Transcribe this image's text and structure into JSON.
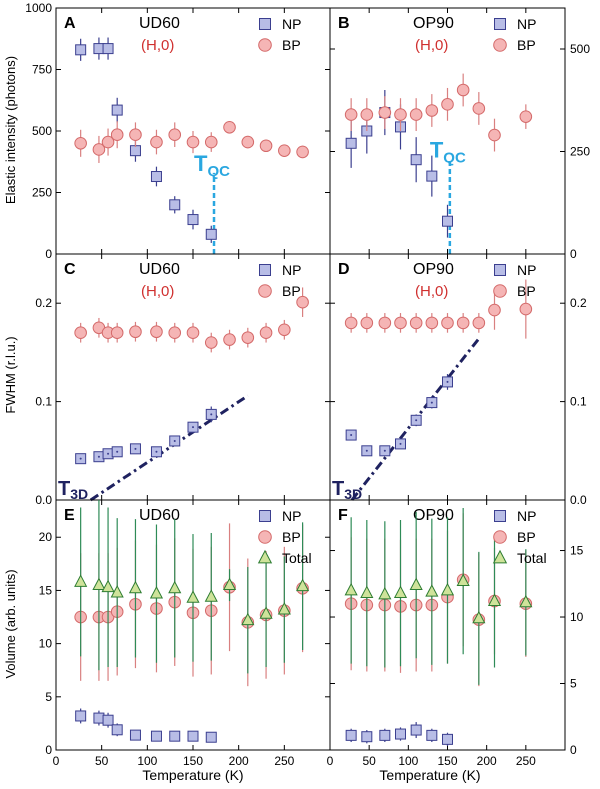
{
  "figure": {
    "xlabel": "Temperature (K)",
    "ylabel_row": [
      "Elastic intensity (photons)",
      "FWHM (r.l.u.)",
      "Volume (arb. units)"
    ]
  },
  "colors": {
    "np_fill": "#b8bde6",
    "np_stroke": "#3b3f8f",
    "bp_fill": "#f5b5b5",
    "bp_stroke": "#d46a6a",
    "total_fill": "#cfe39a",
    "total_stroke": "#2e7d32",
    "total_err": "#2e8b57",
    "np_err": "#3b3f8f",
    "bp_err": "#d98080",
    "tqc": "#2aa7e0",
    "t3d": "#1f2260",
    "title_red": "#d0302f"
  },
  "chart_data": [
    {
      "panel": "A",
      "type": "scatter",
      "title": "UD60",
      "subtitle": "(H,0)",
      "ylim_left": [
        0,
        1000
      ],
      "yticks_left": [
        0,
        250,
        500,
        750,
        1000
      ],
      "xlim": [
        0,
        300
      ],
      "xticks": [
        0,
        50,
        100,
        150,
        200,
        250
      ],
      "legend": [
        "NP",
        "BP"
      ],
      "annotation": {
        "text": "T",
        "sub": "QC",
        "x": 173,
        "y0": 0,
        "y1": 330
      },
      "series": [
        {
          "name": "NP",
          "marker": "square",
          "x": [
            27,
            47,
            57,
            67,
            87,
            110,
            130,
            150,
            170
          ],
          "y": [
            830,
            835,
            835,
            585,
            420,
            315,
            200,
            140,
            80
          ],
          "err": [
            45,
            45,
            45,
            50,
            45,
            40,
            35,
            40,
            35
          ]
        },
        {
          "name": "BP",
          "marker": "circle",
          "x": [
            27,
            47,
            57,
            67,
            87,
            110,
            130,
            150,
            170,
            190,
            210,
            230,
            250,
            270
          ],
          "y": [
            450,
            425,
            455,
            485,
            485,
            455,
            485,
            455,
            455,
            515,
            455,
            440,
            420,
            415
          ],
          "err": [
            55,
            55,
            55,
            55,
            50,
            50,
            50,
            45,
            40,
            25,
            25,
            25,
            25,
            25
          ]
        }
      ]
    },
    {
      "panel": "B",
      "type": "scatter",
      "title": "OP90",
      "subtitle": "(H,0)",
      "ylim_right": [
        0,
        600
      ],
      "yticks_right": [
        0,
        250,
        500
      ],
      "xlim": [
        0,
        300
      ],
      "xticks": [
        0,
        50,
        100,
        150,
        200,
        250
      ],
      "legend": [
        "NP",
        "BP"
      ],
      "annotation": {
        "text": "T",
        "sub": "QC",
        "x": 153,
        "y0": 0,
        "y1": 230
      },
      "series": [
        {
          "name": "NP",
          "marker": "square",
          "x": [
            27,
            47,
            70,
            90,
            110,
            130,
            150
          ],
          "y": [
            270,
            300,
            345,
            310,
            230,
            190,
            80
          ],
          "err": [
            60,
            55,
            55,
            55,
            55,
            50,
            40
          ]
        },
        {
          "name": "BP",
          "marker": "circle",
          "x": [
            27,
            47,
            70,
            90,
            110,
            130,
            150,
            170,
            190,
            210,
            250
          ],
          "y": [
            340,
            340,
            345,
            340,
            340,
            350,
            365,
            400,
            355,
            290,
            335
          ],
          "err": [
            40,
            40,
            40,
            40,
            40,
            40,
            40,
            40,
            40,
            40,
            30
          ]
        }
      ]
    },
    {
      "panel": "C",
      "type": "scatter",
      "title": "UD60",
      "subtitle": "(H,0)",
      "ylim_left": [
        0,
        0.25
      ],
      "yticks_left": [
        0.0,
        0.1,
        0.2
      ],
      "xlim": [
        0,
        300
      ],
      "xticks": [
        0,
        50,
        100,
        150,
        200,
        250
      ],
      "legend": [
        "NP",
        "BP"
      ],
      "annotation": {
        "text": "T",
        "sub": "3D",
        "x": [
          38,
          210
        ],
        "y": [
          0,
          0.106
        ]
      },
      "series": [
        {
          "name": "NP",
          "marker": "square",
          "x": [
            27,
            47,
            57,
            67,
            87,
            110,
            130,
            150,
            170
          ],
          "y": [
            0.042,
            0.044,
            0.047,
            0.049,
            0.052,
            0.049,
            0.06,
            0.074,
            0.087
          ],
          "err": [
            0.004,
            0.004,
            0.004,
            0.004,
            0.004,
            0.004,
            0.004,
            0.004,
            0.008
          ]
        },
        {
          "name": "BP",
          "marker": "circle",
          "x": [
            27,
            47,
            57,
            67,
            87,
            110,
            130,
            150,
            170,
            190,
            210,
            230,
            250,
            270
          ],
          "y": [
            0.17,
            0.175,
            0.17,
            0.17,
            0.171,
            0.171,
            0.17,
            0.17,
            0.16,
            0.163,
            0.165,
            0.17,
            0.173,
            0.201
          ],
          "err": [
            0.01,
            0.01,
            0.01,
            0.01,
            0.01,
            0.01,
            0.01,
            0.01,
            0.01,
            0.01,
            0.01,
            0.01,
            0.01,
            0.015
          ]
        }
      ]
    },
    {
      "panel": "D",
      "type": "scatter",
      "title": "OP90",
      "subtitle": "(H,0)",
      "ylim_right": [
        0,
        0.25
      ],
      "yticks_right": [
        0.0,
        0.1,
        0.2
      ],
      "xlim": [
        0,
        300
      ],
      "xticks": [
        0,
        50,
        100,
        150,
        200,
        250
      ],
      "legend": [
        "NP",
        "BP"
      ],
      "annotation": {
        "text": "T",
        "sub": "3D",
        "x": [
          28,
          192
        ],
        "y": [
          0,
          0.166
        ]
      },
      "series": [
        {
          "name": "NP",
          "marker": "square",
          "x": [
            27,
            47,
            70,
            90,
            110,
            130,
            150
          ],
          "y": [
            0.066,
            0.05,
            0.05,
            0.057,
            0.081,
            0.099,
            0.12
          ],
          "err": [
            0.005,
            0.004,
            0.004,
            0.005,
            0.006,
            0.006,
            0.008
          ]
        },
        {
          "name": "BP",
          "marker": "circle",
          "x": [
            27,
            47,
            70,
            90,
            110,
            130,
            150,
            170,
            190,
            210,
            250
          ],
          "y": [
            0.18,
            0.18,
            0.18,
            0.18,
            0.18,
            0.18,
            0.18,
            0.18,
            0.18,
            0.193,
            0.194
          ],
          "err": [
            0.01,
            0.01,
            0.01,
            0.01,
            0.01,
            0.01,
            0.01,
            0.01,
            0.01,
            0.02,
            0.03
          ]
        }
      ]
    },
    {
      "panel": "E",
      "type": "scatter",
      "title": "UD60",
      "ylim_left": [
        0,
        23.5
      ],
      "yticks_left": [
        0,
        5,
        10,
        15,
        20
      ],
      "xlim": [
        0,
        300
      ],
      "xticks": [
        0,
        50,
        100,
        150,
        200,
        250
      ],
      "legend": [
        "NP",
        "BP",
        "Total"
      ],
      "series": [
        {
          "name": "NP",
          "marker": "square",
          "x": [
            27,
            47,
            57,
            67,
            87,
            110,
            130,
            150,
            170
          ],
          "y": [
            3.2,
            3.0,
            2.8,
            1.9,
            1.4,
            1.3,
            1.3,
            1.3,
            1.2
          ],
          "err": [
            0.7,
            0.7,
            0.7,
            0.6,
            0.4,
            0.4,
            0.4,
            0.4,
            0.4
          ]
        },
        {
          "name": "BP",
          "marker": "circle",
          "x": [
            27,
            47,
            57,
            67,
            87,
            110,
            130,
            150,
            170,
            190,
            210,
            230,
            250,
            270
          ],
          "y": [
            12.5,
            12.5,
            12.5,
            13.0,
            13.7,
            13.3,
            13.9,
            12.9,
            13.1,
            15.3,
            12.0,
            12.7,
            13.1,
            15.2
          ],
          "err": [
            6,
            6,
            6,
            6,
            6,
            6,
            6,
            6,
            6,
            6,
            6,
            6,
            6,
            6
          ]
        },
        {
          "name": "Total",
          "marker": "triangle",
          "x": [
            27,
            47,
            57,
            67,
            87,
            110,
            130,
            150,
            170,
            190,
            210,
            230,
            250,
            270
          ],
          "y": [
            15.8,
            15.5,
            15.3,
            14.8,
            15.2,
            14.7,
            15.2,
            14.3,
            14.4,
            15.5,
            12.2,
            12.8,
            13.2,
            15.4
          ],
          "err": [
            7,
            8,
            7.5,
            7,
            6.5,
            6.5,
            6.5,
            6,
            6,
            1.5,
            5,
            5,
            5,
            6
          ]
        }
      ]
    },
    {
      "panel": "F",
      "type": "scatter",
      "title": "OP90",
      "ylim_right": [
        0,
        18.8
      ],
      "yticks_right": [
        0,
        5,
        10,
        15
      ],
      "xlim": [
        0,
        300
      ],
      "xticks": [
        0,
        50,
        100,
        150,
        200,
        250
      ],
      "legend": [
        "NP",
        "BP",
        "Total"
      ],
      "series": [
        {
          "name": "NP",
          "marker": "square",
          "x": [
            27,
            47,
            70,
            90,
            110,
            130,
            150
          ],
          "y": [
            1.1,
            1.0,
            1.1,
            1.2,
            1.5,
            1.1,
            0.8
          ],
          "err": [
            0.5,
            0.5,
            0.5,
            0.5,
            0.6,
            0.5,
            0.5
          ]
        },
        {
          "name": "BP",
          "marker": "circle",
          "x": [
            27,
            47,
            70,
            90,
            110,
            130,
            150,
            170,
            190,
            210,
            250
          ],
          "y": [
            11.0,
            10.9,
            10.9,
            10.8,
            10.9,
            10.9,
            11.5,
            12.8,
            9.8,
            11.2,
            11.0
          ],
          "err": [
            5,
            5,
            5,
            5,
            5,
            5,
            5,
            5,
            5,
            4,
            4
          ]
        },
        {
          "name": "Total",
          "marker": "triangle",
          "x": [
            27,
            47,
            70,
            90,
            110,
            130,
            150,
            170,
            190,
            210,
            250
          ],
          "y": [
            12.0,
            11.8,
            11.7,
            11.8,
            12.4,
            11.9,
            12.0,
            12.7,
            9.9,
            11.2,
            11.1
          ],
          "err": [
            5.5,
            5.5,
            5.5,
            5.5,
            5.5,
            5.5,
            5.5,
            5.5,
            5,
            5,
            4
          ]
        }
      ]
    }
  ]
}
